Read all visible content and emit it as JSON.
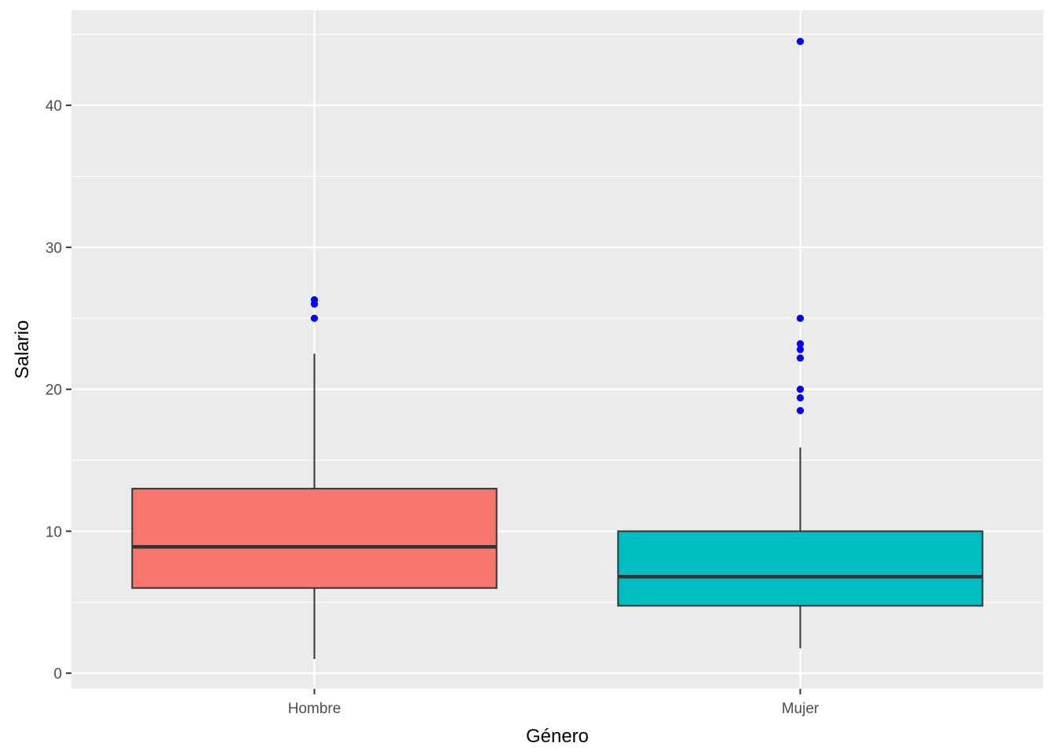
{
  "chart_data": {
    "type": "boxplot",
    "xlabel": "Género",
    "ylabel": "Salario",
    "categories": [
      "Hombre",
      "Mujer"
    ],
    "ylim": [
      -1.1,
      46.7
    ],
    "y_ticks": [
      0,
      10,
      20,
      30,
      40
    ],
    "grid": true,
    "legend": "none",
    "boxes": [
      {
        "category": "Hombre",
        "whisker_low": 1.0,
        "q1": 6.0,
        "median": 8.9,
        "q3": 13.0,
        "whisker_high": 22.5,
        "outliers": [
          25.0,
          26.0,
          26.3
        ],
        "fill": "#F8766D"
      },
      {
        "category": "Mujer",
        "whisker_low": 1.75,
        "q1": 4.75,
        "median": 6.8,
        "q3": 10.0,
        "whisker_high": 15.9,
        "outliers": [
          18.5,
          19.4,
          20.0,
          22.2,
          22.8,
          23.2,
          25.0,
          44.5
        ],
        "fill": "#00BFC4"
      }
    ],
    "colors": {
      "panel_background": "#EBEBEB",
      "grid_line": "#FFFFFF",
      "box_outline": "#333333",
      "outlier_point": "#0000FF"
    }
  }
}
